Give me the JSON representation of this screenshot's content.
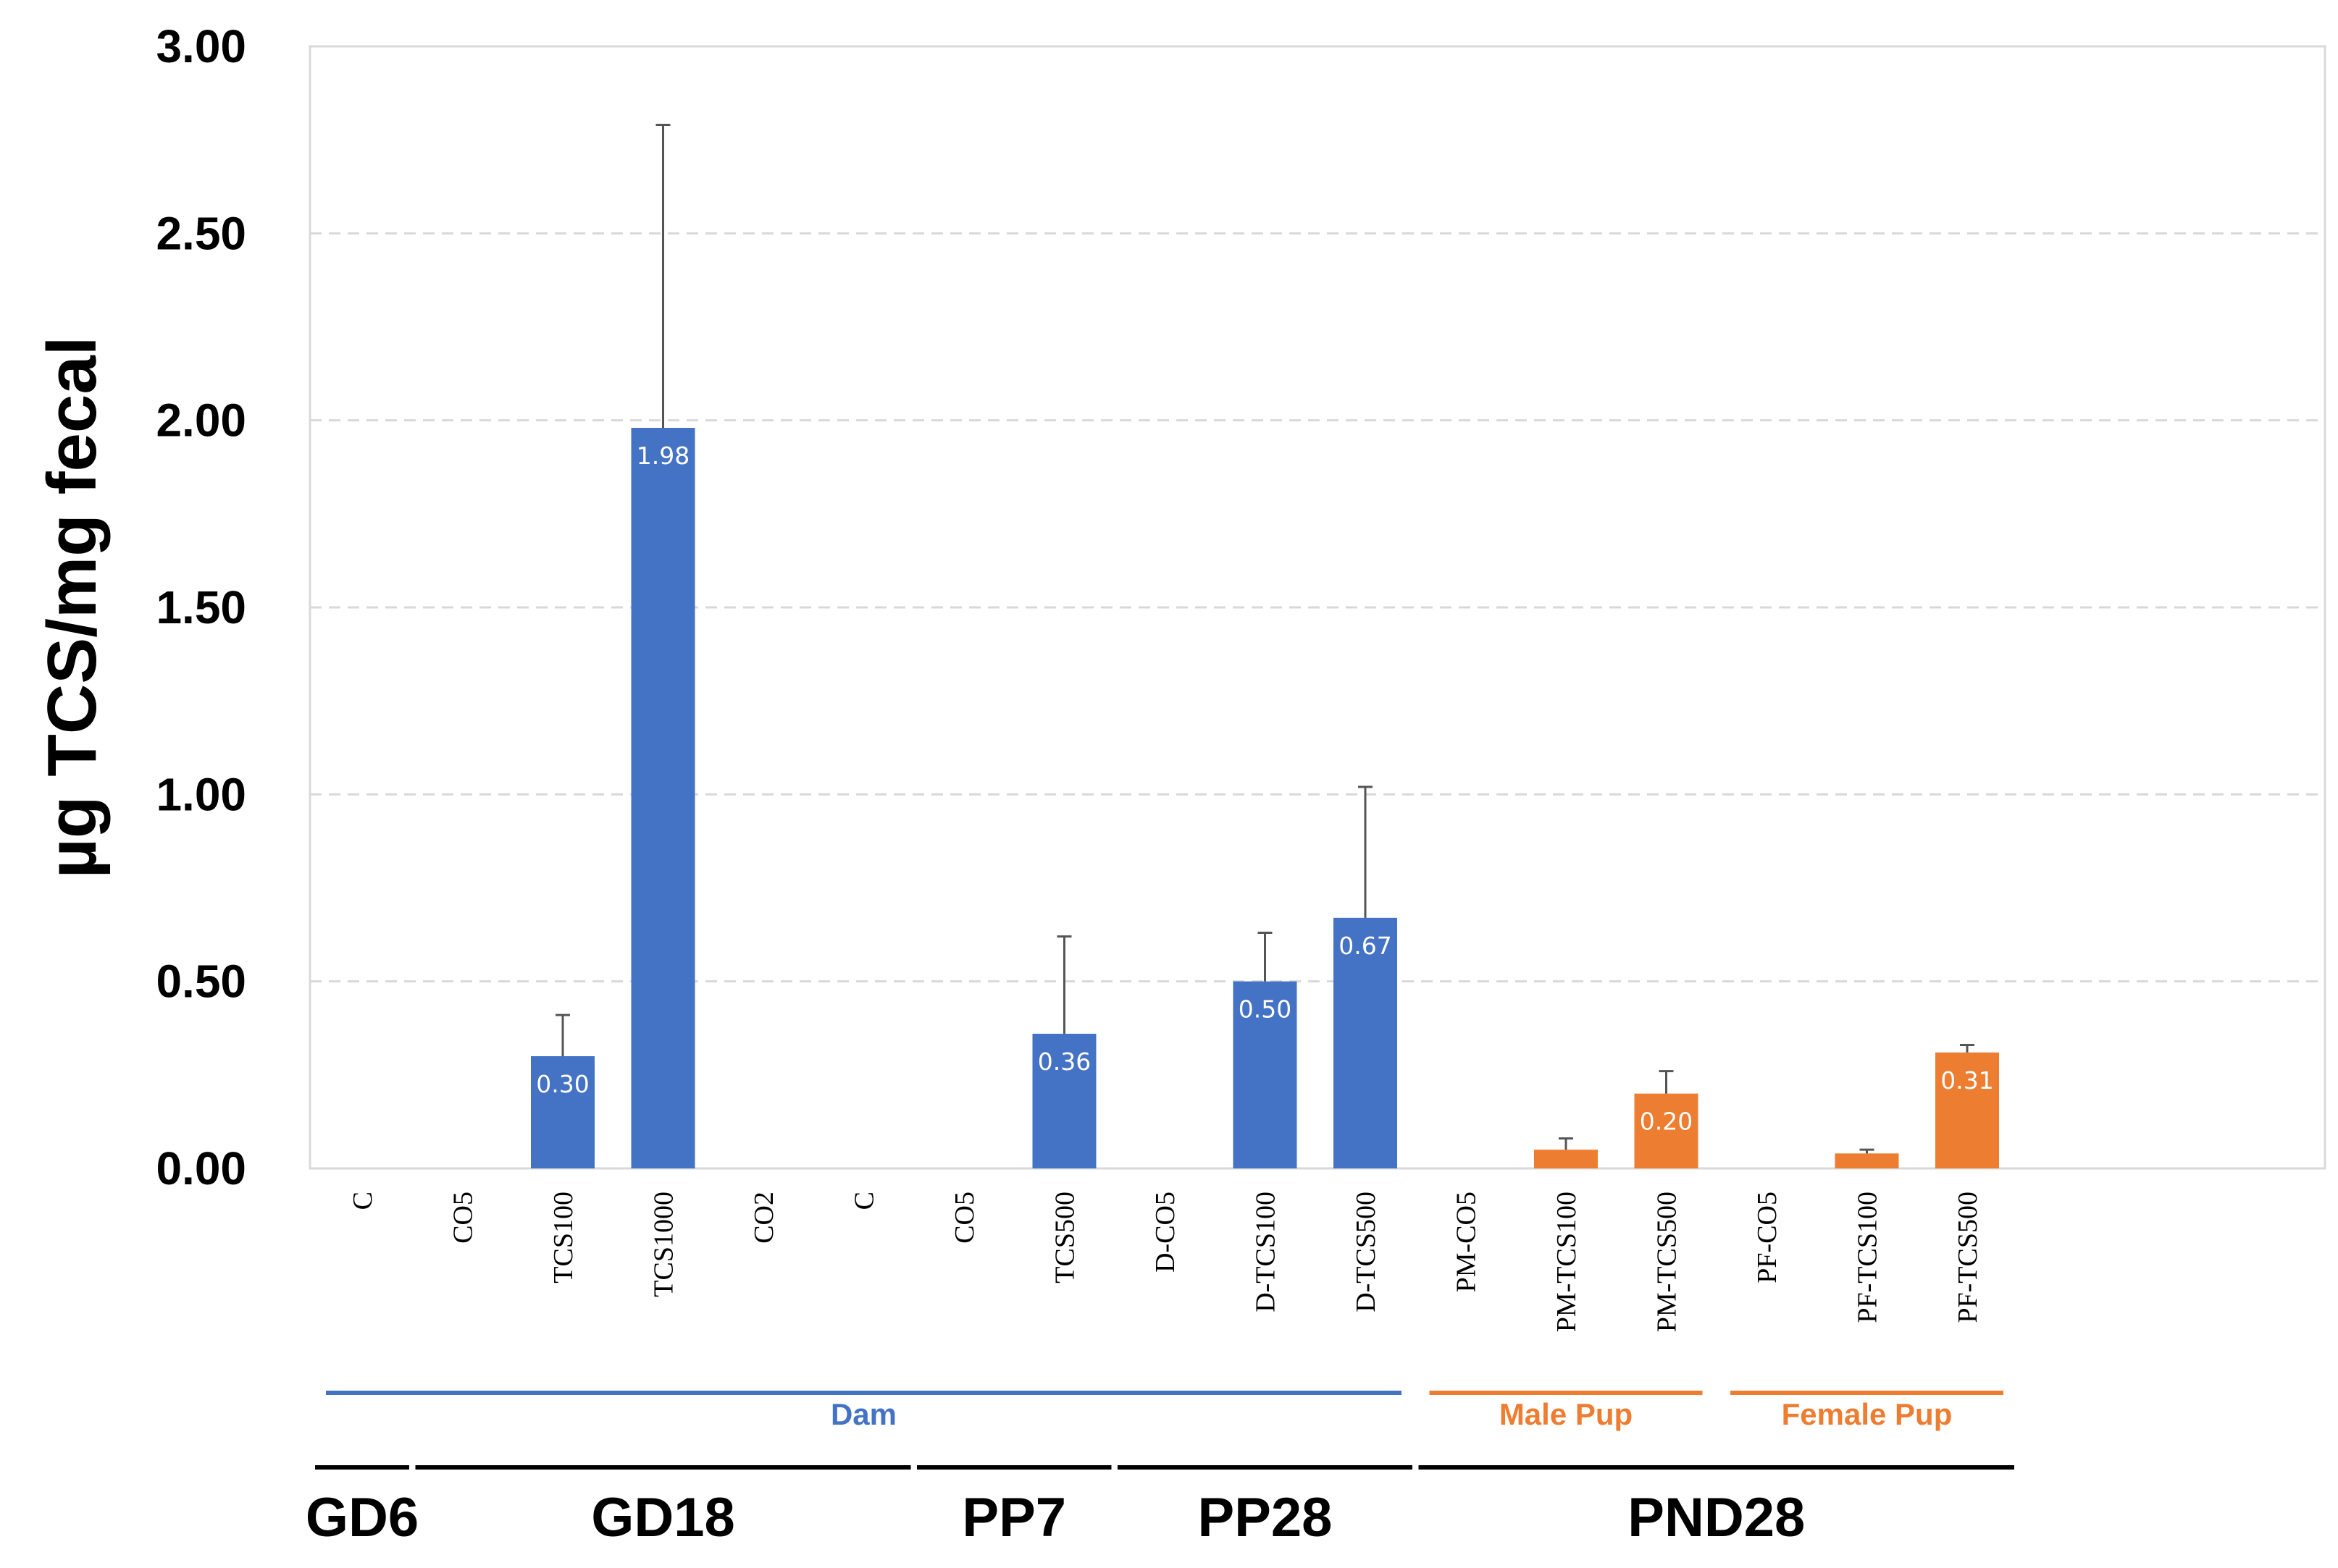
{
  "chart_data": {
    "type": "bar",
    "title": "",
    "xlabel": "",
    "ylabel": "µg TCS/mg fecal",
    "ylim": [
      0,
      3
    ],
    "yticks": [
      "0.00",
      "0.50",
      "1.00",
      "1.50",
      "2.00",
      "2.50",
      "3.00"
    ],
    "grid": "horizontal dashed",
    "categories": [
      "C",
      "CO5",
      "TCS100",
      "TCS1000",
      "CO2",
      "C",
      "CO5",
      "TCS500",
      "D-CO5",
      "D-TCS100",
      "D-TCS500",
      "PM-CO5",
      "PM-TCS100",
      "PM-TCS500",
      "PF-CO5",
      "PF-TCS100",
      "PF-TCS500"
    ],
    "values": [
      0,
      0,
      0.3,
      1.98,
      0,
      0,
      0,
      0.36,
      0,
      0.5,
      0.67,
      0,
      0.05,
      0.2,
      0,
      0.04,
      0.31
    ],
    "error_upper": [
      0,
      0,
      0.41,
      2.79,
      0,
      0,
      0,
      0.62,
      0,
      0.63,
      1.02,
      0,
      0.08,
      0.26,
      0,
      0.05,
      0.33
    ],
    "data_labels": [
      "",
      "",
      "0.30",
      "1.98",
      "",
      "",
      "",
      "0.36",
      "",
      "0.50",
      "0.67",
      "",
      "",
      "0.20",
      "",
      "",
      "0.31"
    ],
    "bar_colors": [
      "#4472C4",
      "#4472C4",
      "#4472C4",
      "#4472C4",
      "#4472C4",
      "#4472C4",
      "#4472C4",
      "#4472C4",
      "#4472C4",
      "#4472C4",
      "#4472C4",
      "#ED7D31",
      "#ED7D31",
      "#ED7D31",
      "#ED7D31",
      "#ED7D31",
      "#ED7D31"
    ],
    "subject_groups": [
      {
        "label": "Dam",
        "color": "#4472C4",
        "from": 0,
        "to": 10
      },
      {
        "label": "Male Pup",
        "color": "#ED7D31",
        "from": 11,
        "to": 13
      },
      {
        "label": "Female Pup",
        "color": "#ED7D31",
        "from": 14,
        "to": 16
      }
    ],
    "time_groups": [
      {
        "label": "GD6",
        "from": 0,
        "to": 0
      },
      {
        "label": "GD18",
        "from": 1,
        "to": 5
      },
      {
        "label": "PP7",
        "from": 6,
        "to": 7
      },
      {
        "label": "PP28",
        "from": 8,
        "to": 10
      },
      {
        "label": "PND28",
        "from": 11,
        "to": 16
      }
    ]
  }
}
